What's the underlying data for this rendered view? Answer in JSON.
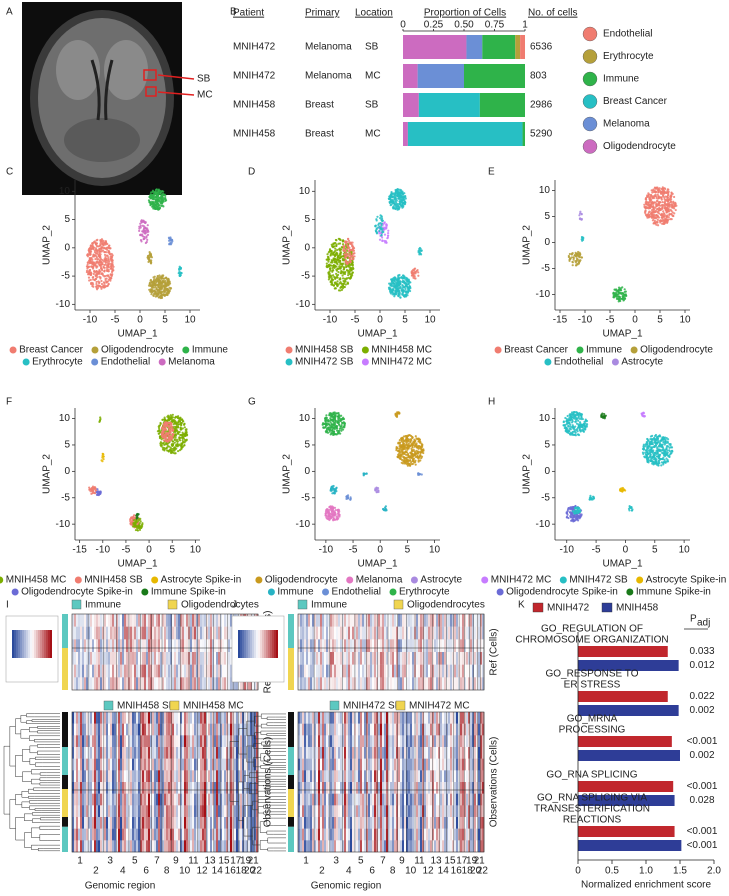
{
  "chart_data": [
    {
      "type": "image",
      "label": "A",
      "annotations": [
        "SB",
        "MC"
      ]
    },
    {
      "type": "stacked_bar",
      "label": "B",
      "columns": [
        "Patient",
        "Primary",
        "Location",
        "Proportion of Cells",
        "No. of cells"
      ],
      "rows": [
        [
          "MNIH472",
          "Melanoma",
          "SB",
          6536
        ],
        [
          "MNIH472",
          "Melanoma",
          "MC",
          803
        ],
        [
          "MNIH458",
          "Breast",
          "SB",
          2986
        ],
        [
          "MNIH458",
          "Breast",
          "MC",
          5290
        ]
      ],
      "series": [
        {
          "name": "Endothelial",
          "color": "#f07c70",
          "values": [
            0.04,
            0,
            0,
            0
          ]
        },
        {
          "name": "Erythrocyte",
          "color": "#b5a03a",
          "values": [
            0.04,
            0,
            0,
            0
          ]
        },
        {
          "name": "Immune",
          "color": "#2fb34a",
          "values": [
            0.27,
            0.5,
            0.37,
            0.02
          ]
        },
        {
          "name": "Breast Cancer",
          "color": "#27bfc4",
          "values": [
            0,
            0,
            0.5,
            0.94
          ]
        },
        {
          "name": "Melanoma",
          "color": "#6b8fd6",
          "values": [
            0.13,
            0.38,
            0,
            0
          ]
        },
        {
          "name": "Oligodendrocyte",
          "color": "#cc6bc0",
          "values": [
            0.52,
            0.12,
            0.13,
            0.04
          ]
        }
      ],
      "xlim": [
        0,
        1
      ],
      "xticks": [
        0,
        0.25,
        {
          "value": 0.5,
          "label": "0.50"
        },
        0.75,
        1
      ]
    },
    {
      "type": "umap",
      "label": "C",
      "xlabel": "UMAP_1",
      "ylabel": "UMAP_2",
      "xlim": [
        -13,
        12
      ],
      "ylim": [
        -11,
        12
      ],
      "xticks": [
        -10,
        -5,
        0,
        5,
        10
      ],
      "yticks": [
        -10,
        -5,
        0,
        5,
        10
      ],
      "series": [
        {
          "name": "Breast Cancer",
          "color": "#f07c70"
        },
        {
          "name": "Oligodendrocyte",
          "color": "#b5a03a"
        },
        {
          "name": "Immune",
          "color": "#2fb34a"
        },
        {
          "name": "Erythrocyte",
          "color": "#27bfc4"
        },
        {
          "name": "Endothelial",
          "color": "#6b8fd6"
        },
        {
          "name": "Melanoma",
          "color": "#cc6bc0"
        }
      ]
    },
    {
      "type": "umap",
      "label": "D",
      "xlabel": "UMAP_1",
      "ylabel": "UMAP_2",
      "xlim": [
        -13,
        12
      ],
      "ylim": [
        -11,
        12
      ],
      "xticks": [
        -10,
        -5,
        0,
        5,
        10
      ],
      "yticks": [
        -10,
        -5,
        0,
        5,
        10
      ],
      "series": [
        {
          "name": "MNIH458 SB",
          "color": "#f07c70"
        },
        {
          "name": "MNIH458 MC",
          "color": "#7cae00"
        },
        {
          "name": "MNIH472 SB",
          "color": "#27bfc4"
        },
        {
          "name": "MNIH472 MC",
          "color": "#c77cff"
        }
      ]
    },
    {
      "type": "umap",
      "label": "E",
      "xlabel": "UMAP_1",
      "ylabel": "UMAP_2",
      "xlim": [
        -16,
        11
      ],
      "ylim": [
        -13,
        12
      ],
      "xticks": [
        -15,
        -10,
        -5,
        0,
        5,
        10
      ],
      "yticks": [
        -10,
        -5,
        0,
        5,
        10
      ],
      "series": [
        {
          "name": "Breast Cancer",
          "color": "#f07c70"
        },
        {
          "name": "Immune",
          "color": "#2fb34a"
        },
        {
          "name": "Oligodendrocyte",
          "color": "#b5a03a"
        },
        {
          "name": "Endothelial",
          "color": "#27bfc4"
        },
        {
          "name": "Astrocyte",
          "color": "#a98ae0"
        }
      ]
    },
    {
      "type": "umap",
      "label": "F",
      "xlabel": "UMAP_1",
      "ylabel": "UMAP_2",
      "xlim": [
        -16,
        11
      ],
      "ylim": [
        -13,
        12
      ],
      "xticks": [
        -15,
        -10,
        -5,
        0,
        5,
        10
      ],
      "yticks": [
        -10,
        -5,
        0,
        5,
        10
      ],
      "series": [
        {
          "name": "MNIH458 MC",
          "color": "#7cae00"
        },
        {
          "name": "MNIH458 SB",
          "color": "#f07c70"
        },
        {
          "name": "Astrocyte Spike-in",
          "color": "#e7b800"
        },
        {
          "name": "Oligodendrocyte Spike-in",
          "color": "#6b6bd6"
        },
        {
          "name": "Immune Spike-in",
          "color": "#1a7a1a"
        }
      ]
    },
    {
      "type": "umap",
      "label": "G",
      "xlabel": "UMAP_1",
      "ylabel": "UMAP_2",
      "xlim": [
        -12,
        11
      ],
      "ylim": [
        -13,
        12
      ],
      "xticks": [
        -10,
        -5,
        0,
        5,
        10
      ],
      "yticks": [
        -10,
        -5,
        0,
        5,
        10
      ],
      "series": [
        {
          "name": "Oligodendrocyte",
          "color": "#c99a1e"
        },
        {
          "name": "Melanoma",
          "color": "#e377c2"
        },
        {
          "name": "Astrocyte",
          "color": "#a98ae0"
        },
        {
          "name": "Immune",
          "color": "#27b3c4"
        },
        {
          "name": "Endothelial",
          "color": "#6b8fd6"
        },
        {
          "name": "Erythrocyte",
          "color": "#2fb34a"
        }
      ]
    },
    {
      "type": "umap",
      "label": "H",
      "xlabel": "UMAP_1",
      "ylabel": "UMAP_2",
      "xlim": [
        -12,
        11
      ],
      "ylim": [
        -13,
        12
      ],
      "xticks": [
        -10,
        -5,
        0,
        5,
        10
      ],
      "yticks": [
        -10,
        -5,
        0,
        5,
        10
      ],
      "series": [
        {
          "name": "MNIH472 MC",
          "color": "#c77cff"
        },
        {
          "name": "MNIH472 SB",
          "color": "#27bfc4"
        },
        {
          "name": "Astrocyte Spike-in",
          "color": "#e7b800"
        },
        {
          "name": "Oligodendrocyte Spike-in",
          "color": "#6b6bd6"
        },
        {
          "name": "Immune Spike-in",
          "color": "#1a7a1a"
        }
      ]
    },
    {
      "type": "heatmap",
      "label": "I",
      "ref_legend": [
        {
          "name": "Immune",
          "color": "#5cc8c0"
        },
        {
          "name": "Oligodendrocytes",
          "color": "#f0d550"
        }
      ],
      "obs_legend": [
        {
          "name": "MNIH458 SB",
          "color": "#5cc8c0"
        },
        {
          "name": "MNIH458 MC",
          "color": "#f0d550"
        }
      ],
      "ref_label": "References (Cells)",
      "obs_label": "Observations (Cells)",
      "xlabel": "Genomic region",
      "categories": [
        "1",
        "2",
        "3",
        "4",
        "5",
        "6",
        "7",
        "8",
        "9",
        "10",
        "11",
        "12",
        "13",
        "14",
        "15",
        "16",
        "17",
        "18",
        "19",
        "20",
        "21",
        "22"
      ]
    },
    {
      "type": "heatmap",
      "label": "J",
      "ref_legend": [
        {
          "name": "Immune",
          "color": "#5cc8c0"
        },
        {
          "name": "Oligodendrocytes",
          "color": "#f0d550"
        }
      ],
      "obs_legend": [
        {
          "name": "MNIH472 SB",
          "color": "#5cc8c0"
        },
        {
          "name": "MNIH472 MC",
          "color": "#f0d550"
        }
      ],
      "ref_label": "Ref (Cells)",
      "obs_label": "Observations (Cells)",
      "xlabel": "Genomic region",
      "categories": [
        "1",
        "2",
        "3",
        "4",
        "5",
        "6",
        "7",
        "8",
        "9",
        "10",
        "11",
        "12",
        "13",
        "14",
        "15",
        "16",
        "17",
        "18",
        "19",
        "20",
        "21",
        "22"
      ]
    },
    {
      "type": "hbar",
      "label": "K",
      "categories": [
        [
          "GO_REGULATION OF",
          "CHROMOSOME ORGANIZATION"
        ],
        [
          "GO_RESPONSE TO",
          "ER STRESS"
        ],
        [
          "GO_MRNA",
          "PROCESSING"
        ],
        [
          "GO_RNA SPLICING"
        ],
        [
          "GO_RNA SPLICING VIA",
          "TRANSESTERIFICATION",
          "REACTIONS"
        ]
      ],
      "series": [
        {
          "name": "MNIH472",
          "color": "#c1272d",
          "values": [
            1.32,
            1.32,
            1.38,
            1.4,
            1.42
          ],
          "p_adj_labels": [
            "0.033",
            "0.022",
            "<0.001",
            "<0.001",
            "<0.001"
          ]
        },
        {
          "name": "MNIH458",
          "color": "#2e3d97",
          "values": [
            1.48,
            1.48,
            1.5,
            1.42,
            1.52
          ],
          "p_adj_labels": [
            "0.012",
            "0.002",
            "0.002",
            "0.028",
            "<0.001"
          ]
        }
      ],
      "annotation_header": {
        "text": "P",
        "subscript": "adj"
      },
      "xlabel": "Normalized enrichment score",
      "xlim": [
        0,
        2
      ],
      "xticks": [
        0,
        0.5,
        {
          "value": 1,
          "label": "1.0"
        },
        1.5,
        {
          "value": 2,
          "label": "2.0"
        }
      ]
    }
  ]
}
